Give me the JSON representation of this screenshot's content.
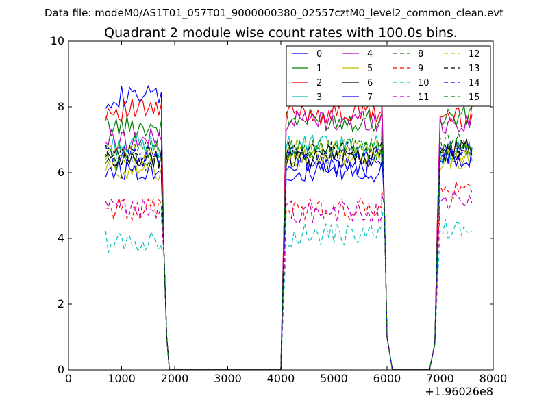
{
  "figure": {
    "suptitle": "Data file: modeM0/AS1T01_057T01_9000000380_02557cztM0_level2_common_clean.evt"
  },
  "chart_data": {
    "type": "line",
    "title": "Quadrant 2 module wise count rates with 100.0s bins.",
    "xlabel": "",
    "ylabel": "",
    "x_offset_label": "+1.96026e8",
    "xlim": [
      0,
      8000
    ],
    "ylim": [
      0,
      10
    ],
    "x_ticks": [
      0,
      1000,
      2000,
      3000,
      4000,
      5000,
      6000,
      7000,
      8000
    ],
    "y_ticks": [
      0,
      2,
      4,
      6,
      8,
      10
    ],
    "x_tick_labels": [
      "0",
      "1000",
      "2000",
      "3000",
      "4000",
      "5000",
      "6000",
      "7000",
      "8000"
    ],
    "y_tick_labels": [
      "0",
      "2",
      "4",
      "6",
      "8",
      "10"
    ],
    "legend_position": "top-right",
    "legend_columns": 4,
    "grid": false,
    "segments": [
      {
        "start": 700,
        "end": 1750
      },
      {
        "start": 4100,
        "end": 5900
      },
      {
        "start": 7000,
        "end": 7600
      }
    ],
    "gaps": [
      {
        "x": [
          1750,
          1800,
          1850,
          1900,
          4000,
          4050
        ],
        "y": [
          7.0,
          3.5,
          1.0,
          0,
          0,
          3.0
        ]
      },
      {
        "x": [
          5900,
          5950,
          6000,
          6100,
          6800,
          6900,
          6950
        ],
        "y": [
          8.0,
          5.0,
          1.0,
          0,
          0,
          0.8,
          4.0
        ]
      }
    ],
    "series": [
      {
        "name": "0",
        "color": "#0000ff",
        "dash": "solid",
        "levels": [
          8.3,
          6.2,
          6.7
        ]
      },
      {
        "name": "1",
        "color": "#008000",
        "dash": "solid",
        "levels": [
          7.4,
          7.6,
          7.7
        ]
      },
      {
        "name": "2",
        "color": "#ff0000",
        "dash": "solid",
        "levels": [
          7.9,
          7.8,
          7.7
        ]
      },
      {
        "name": "3",
        "color": "#00bfbf",
        "dash": "solid",
        "levels": [
          6.8,
          6.8,
          6.6
        ]
      },
      {
        "name": "4",
        "color": "#bf00bf",
        "dash": "solid",
        "levels": [
          7.0,
          7.6,
          7.5
        ]
      },
      {
        "name": "5",
        "color": "#bfbf00",
        "dash": "solid",
        "levels": [
          6.1,
          6.5,
          6.4
        ]
      },
      {
        "name": "6",
        "color": "#000000",
        "dash": "solid",
        "levels": [
          6.4,
          6.5,
          6.7
        ]
      },
      {
        "name": "7",
        "color": "#0000ff",
        "dash": "solid",
        "levels": [
          6.1,
          6.0,
          6.5
        ]
      },
      {
        "name": "8",
        "color": "#008000",
        "dash": "dashed",
        "levels": [
          6.4,
          6.7,
          6.9
        ]
      },
      {
        "name": "9",
        "color": "#ff0000",
        "dash": "dashed",
        "levels": [
          4.9,
          4.9,
          5.4
        ]
      },
      {
        "name": "10",
        "color": "#00bfbf",
        "dash": "dashed",
        "levels": [
          3.9,
          4.1,
          4.3
        ]
      },
      {
        "name": "11",
        "color": "#bf00bf",
        "dash": "dashed",
        "levels": [
          4.9,
          4.8,
          5.1
        ]
      },
      {
        "name": "12",
        "color": "#bfbf00",
        "dash": "dashed",
        "levels": [
          6.6,
          6.7,
          6.6
        ]
      },
      {
        "name": "13",
        "color": "#000000",
        "dash": "dashed",
        "levels": [
          6.5,
          6.6,
          6.6
        ]
      },
      {
        "name": "14",
        "color": "#0000ff",
        "dash": "dashed",
        "levels": [
          6.5,
          6.5,
          6.6
        ]
      },
      {
        "name": "15",
        "color": "#008000",
        "dash": "dashed",
        "levels": [
          6.6,
          6.7,
          6.8
        ]
      }
    ]
  }
}
